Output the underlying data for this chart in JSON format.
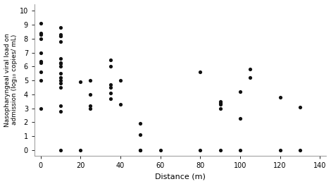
{
  "x": [
    0,
    0,
    0,
    0,
    0,
    0,
    0,
    0,
    0,
    0,
    10,
    10,
    10,
    10,
    10,
    10,
    10,
    10,
    10,
    10,
    10,
    10,
    10,
    10,
    10,
    10,
    10,
    20,
    20,
    25,
    25,
    25,
    25,
    35,
    35,
    35,
    35,
    35,
    35,
    40,
    40,
    50,
    50,
    50,
    50,
    60,
    80,
    80,
    90,
    90,
    90,
    90,
    90,
    100,
    100,
    100,
    105,
    105,
    120,
    120,
    130,
    130
  ],
  "y": [
    9.1,
    8.4,
    8.3,
    8.0,
    7.0,
    6.4,
    6.3,
    5.6,
    5.0,
    3.0,
    8.8,
    8.3,
    8.2,
    8.2,
    7.8,
    6.6,
    6.3,
    6.2,
    6.0,
    5.5,
    5.2,
    5.0,
    4.8,
    4.5,
    3.2,
    2.8,
    0.0,
    4.9,
    0.0,
    5.0,
    4.0,
    3.2,
    3.0,
    6.5,
    6.0,
    4.7,
    4.5,
    4.1,
    3.7,
    5.0,
    3.3,
    1.9,
    1.1,
    0.0,
    0.0,
    0.0,
    5.6,
    0.0,
    3.5,
    3.4,
    3.3,
    3.0,
    0.0,
    4.2,
    2.3,
    0.0,
    5.8,
    5.2,
    3.8,
    0.0,
    3.1,
    0.0
  ],
  "xlabel": "Distance (m)",
  "ylabel": "Nasopharyngeal viral load on\nadmission (log₁₀ copies/ mL)",
  "xlim": [
    -3,
    143
  ],
  "ylim": [
    -0.4,
    10.5
  ],
  "xticks": [
    0,
    20,
    40,
    60,
    80,
    100,
    120,
    140
  ],
  "yticks": [
    0,
    1,
    2,
    3,
    4,
    5,
    6,
    7,
    8,
    9,
    10
  ],
  "marker_color": "#111111",
  "marker_size": 14,
  "background_color": "#ffffff"
}
